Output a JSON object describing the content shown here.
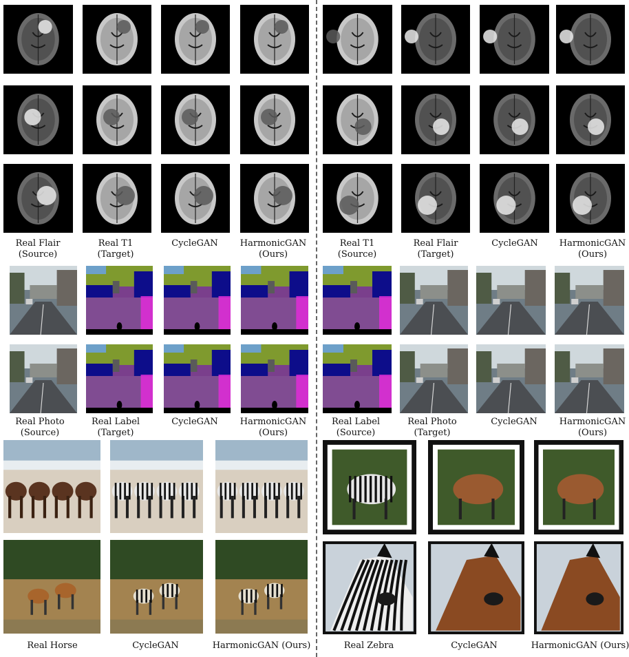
{
  "figure": {
    "sections": [
      {
        "id": "mri",
        "left": {
          "captions": [
            {
              "line1": "Real Flair",
              "line2": "(Source)"
            },
            {
              "line1": "Real T1",
              "line2": "(Target)"
            },
            {
              "line1": "CycleGAN",
              "line2": ""
            },
            {
              "line1": "HarmonicGAN",
              "line2": "(Ours)"
            }
          ]
        },
        "right": {
          "captions": [
            {
              "line1": "Real T1",
              "line2": "(Source)"
            },
            {
              "line1": "Real Flair",
              "line2": "(Target)"
            },
            {
              "line1": "CycleGAN",
              "line2": ""
            },
            {
              "line1": "HarmonicGAN",
              "line2": "(Ours)"
            }
          ]
        }
      },
      {
        "id": "cityscapes",
        "left": {
          "captions": [
            {
              "line1": "Real Photo",
              "line2": "(Source)"
            },
            {
              "line1": "Real Label",
              "line2": "(Target)"
            },
            {
              "line1": "CycleGAN",
              "line2": ""
            },
            {
              "line1": "HarmonicGAN",
              "line2": "(Ours)"
            }
          ]
        },
        "right": {
          "captions": [
            {
              "line1": "Real Label",
              "line2": "(Source)"
            },
            {
              "line1": "Real Photo",
              "line2": "(Target)"
            },
            {
              "line1": "CycleGAN",
              "line2": ""
            },
            {
              "line1": "HarmonicGAN",
              "line2": "(Ours)"
            }
          ]
        }
      },
      {
        "id": "horse-zebra",
        "left": {
          "captions": [
            {
              "line1": "Real Horse",
              "line2": ""
            },
            {
              "line1": "CycleGAN",
              "line2": ""
            },
            {
              "line1": "HarmonicGAN (Ours)",
              "line2": ""
            }
          ]
        },
        "right": {
          "captions": [
            {
              "line1": "Real Zebra",
              "line2": ""
            },
            {
              "line1": "CycleGAN",
              "line2": ""
            },
            {
              "line1": "HarmonicGAN (Ours)",
              "line2": ""
            }
          ]
        }
      }
    ]
  }
}
